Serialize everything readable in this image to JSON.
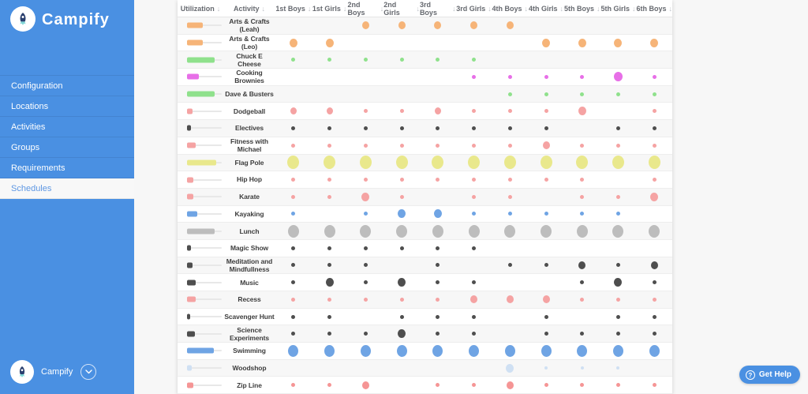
{
  "app": {
    "accent_color": "#4a90e2",
    "page_background": "#f7f7f7"
  },
  "sidebar": {
    "brand": "Campify",
    "nav": [
      {
        "label": "Configuration",
        "active": false
      },
      {
        "label": "Locations",
        "active": false
      },
      {
        "label": "Activities",
        "active": false
      },
      {
        "label": "Groups",
        "active": false
      },
      {
        "label": "Requirements",
        "active": false
      },
      {
        "label": "Schedules",
        "active": true
      }
    ],
    "footer": {
      "brand": "Campify"
    }
  },
  "help": {
    "label": "Get Help",
    "icon": "?"
  },
  "icons": {
    "sort": "↓"
  },
  "table": {
    "columns": [
      "Utilization",
      "Activity",
      "1st Boys",
      "1st Girls",
      "2nd Boys",
      "2nd Girls",
      "3rd Boys",
      "3rd Girls",
      "4th Boys",
      "4th Girls",
      "5th Boys",
      "5th Girls",
      "6th Boys"
    ],
    "rows": [
      {
        "activity": "Arts & Crafts (Leah)",
        "color": "#F6B478",
        "utilization": 46,
        "dots": [
          0,
          0,
          10,
          10,
          10,
          10,
          10,
          0,
          0,
          0,
          0
        ]
      },
      {
        "activity": "Arts & Crafts (Leo)",
        "color": "#F6B478",
        "utilization": 46,
        "dots": [
          11,
          11,
          0,
          0,
          0,
          0,
          0,
          11,
          11,
          11,
          11
        ]
      },
      {
        "activity": "Chuck E Cheese",
        "color": "#8FE18C",
        "utilization": 80,
        "dots": [
          5,
          5,
          5,
          5,
          5,
          5,
          0,
          0,
          0,
          0,
          0
        ]
      },
      {
        "activity": "Cooking Brownies",
        "color": "#E76FE7",
        "utilization": 35,
        "dots": [
          0,
          0,
          0,
          0,
          0,
          5,
          5,
          5,
          5,
          12,
          5
        ]
      },
      {
        "activity": "Dave & Busters",
        "color": "#8FE18C",
        "utilization": 80,
        "dots": [
          0,
          0,
          0,
          0,
          0,
          0,
          5,
          5,
          5,
          5,
          5
        ]
      },
      {
        "activity": "Dodgeball",
        "color": "#F5A3A3",
        "utilization": 15,
        "dots": [
          9,
          9,
          5,
          5,
          9,
          5,
          5,
          5,
          11,
          0,
          5
        ]
      },
      {
        "activity": "Electives",
        "color": "#4E4E4E",
        "utilization": 12,
        "dots": [
          5,
          5,
          5,
          5,
          5,
          5,
          5,
          5,
          0,
          5,
          5
        ]
      },
      {
        "activity": "Fitness with Michael",
        "color": "#F5A3A3",
        "utilization": 25,
        "dots": [
          5,
          5,
          5,
          5,
          5,
          5,
          5,
          10,
          5,
          5,
          5
        ]
      },
      {
        "activity": "Flag Pole",
        "color": "#E9E88C",
        "utilization": 85,
        "dots": [
          17,
          17,
          17,
          17,
          17,
          17,
          17,
          17,
          17,
          17,
          17
        ]
      },
      {
        "activity": "Hip Hop",
        "color": "#F5A3A3",
        "utilization": 19,
        "dots": [
          5,
          5,
          5,
          5,
          5,
          5,
          5,
          5,
          5,
          0,
          5
        ]
      },
      {
        "activity": "Karate",
        "color": "#F5A3A3",
        "utilization": 19,
        "dots": [
          5,
          5,
          11,
          5,
          0,
          5,
          5,
          0,
          5,
          5,
          11
        ]
      },
      {
        "activity": "Kayaking",
        "color": "#6FA4E4",
        "utilization": 29,
        "dots": [
          5,
          0,
          5,
          11,
          11,
          5,
          5,
          5,
          5,
          5,
          0
        ]
      },
      {
        "activity": "Lunch",
        "color": "#BDBDBD",
        "utilization": 80,
        "dots": [
          16,
          16,
          16,
          16,
          16,
          16,
          16,
          16,
          16,
          16,
          16
        ]
      },
      {
        "activity": "Magic Show",
        "color": "#4E4E4E",
        "utilization": 12,
        "dots": [
          5,
          5,
          5,
          5,
          5,
          5,
          0,
          0,
          0,
          0,
          0
        ]
      },
      {
        "activity": "Meditation and Mindfullness",
        "color": "#4E4E4E",
        "utilization": 17,
        "dots": [
          5,
          5,
          5,
          0,
          5,
          0,
          5,
          5,
          10,
          5,
          10
        ]
      },
      {
        "activity": "Music",
        "color": "#4E4E4E",
        "utilization": 25,
        "dots": [
          5,
          11,
          5,
          11,
          5,
          5,
          0,
          0,
          5,
          11,
          5
        ]
      },
      {
        "activity": "Recess",
        "color": "#F5A3A3",
        "utilization": 25,
        "dots": [
          5,
          5,
          5,
          5,
          5,
          10,
          10,
          10,
          5,
          5,
          5
        ]
      },
      {
        "activity": "Scavenger Hunt",
        "color": "#4E4E4E",
        "utilization": 10,
        "dots": [
          5,
          5,
          0,
          5,
          5,
          5,
          0,
          5,
          0,
          5,
          5
        ]
      },
      {
        "activity": "Science Experiments",
        "color": "#4E4E4E",
        "utilization": 23,
        "dots": [
          5,
          5,
          5,
          11,
          5,
          5,
          0,
          5,
          5,
          5,
          5
        ]
      },
      {
        "activity": "Swimming",
        "color": "#6FA4E4",
        "utilization": 77,
        "dots": [
          15,
          15,
          15,
          15,
          15,
          15,
          15,
          15,
          15,
          15,
          15
        ]
      },
      {
        "activity": "Woodshop",
        "color": "#CFE0F3",
        "utilization": 13,
        "dots": [
          0,
          0,
          0,
          0,
          0,
          0,
          11,
          4,
          4,
          4,
          0
        ]
      },
      {
        "activity": "Zip Line",
        "color": "#F59595",
        "utilization": 19,
        "dots": [
          5,
          5,
          10,
          0,
          5,
          5,
          10,
          5,
          5,
          5,
          5
        ]
      }
    ]
  }
}
